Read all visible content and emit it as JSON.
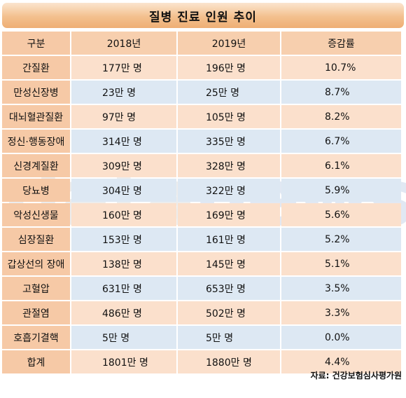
{
  "title": "질병 진료 인원 추이",
  "columns": [
    "구분",
    "2018년",
    "2019년",
    "증감률"
  ],
  "rows": [
    {
      "name": "간질환",
      "y2018": "177만 명",
      "y2019": "196만 명",
      "rate": "10.7%"
    },
    {
      "name": "만성신장병",
      "y2018": "23만 명",
      "y2019": "25만 명",
      "rate": "8.7%"
    },
    {
      "name": "대뇌혈관질환",
      "y2018": "97만 명",
      "y2019": "105만 명",
      "rate": "8.2%"
    },
    {
      "name": "정신·행동장애",
      "y2018": "314만 명",
      "y2019": "335만 명",
      "rate": "6.7%"
    },
    {
      "name": "신경계질환",
      "y2018": "309만 명",
      "y2019": "328만 명",
      "rate": "6.1%"
    },
    {
      "name": "당뇨병",
      "y2018": "304만 명",
      "y2019": "322만 명",
      "rate": "5.9%"
    },
    {
      "name": "악성신생물",
      "y2018": "160만 명",
      "y2019": "169만 명",
      "rate": "5.6%"
    },
    {
      "name": "심장질환",
      "y2018": "153만 명",
      "y2019": "161만 명",
      "rate": "5.2%"
    },
    {
      "name": "갑상선의 장애",
      "y2018": "138만 명",
      "y2019": "145만 명",
      "rate": "5.1%"
    },
    {
      "name": "고혈압",
      "y2018": "631만 명",
      "y2019": "653만 명",
      "rate": "3.5%"
    },
    {
      "name": "관절염",
      "y2018": "486만 명",
      "y2019": "502만 명",
      "rate": "3.3%"
    },
    {
      "name": "호흡기결핵",
      "y2018": "5만 명",
      "y2019": "5만 명",
      "rate": "0.0%"
    }
  ],
  "total": {
    "name": "합계",
    "y2018": "1801만 명",
    "y2019": "1880만 명",
    "rate": "4.4%"
  },
  "source": "자료: 건강보험심사평가원",
  "watermark": {
    "part1": "data",
    "part2": "news"
  }
}
